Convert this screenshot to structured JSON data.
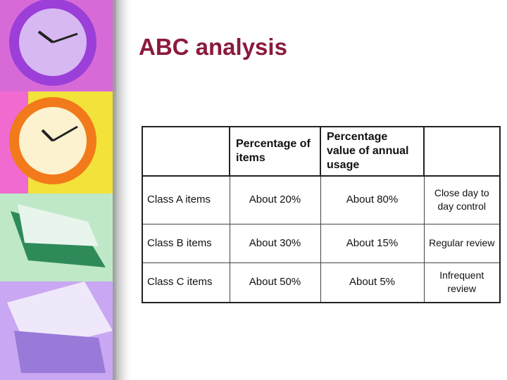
{
  "header": {
    "title": "ABC analysis"
  },
  "table": {
    "headers": [
      "Percentage of items",
      "Percentage value of annual usage"
    ],
    "rows": [
      [
        "Class A items",
        "About 20%",
        "About 80%",
        "Close day to day control"
      ],
      [
        "Class B items",
        "About 30%",
        "About 15%",
        "Regular review"
      ],
      [
        "Class C items",
        "About 50%",
        "About 5%",
        "Infrequent review"
      ]
    ]
  }
}
